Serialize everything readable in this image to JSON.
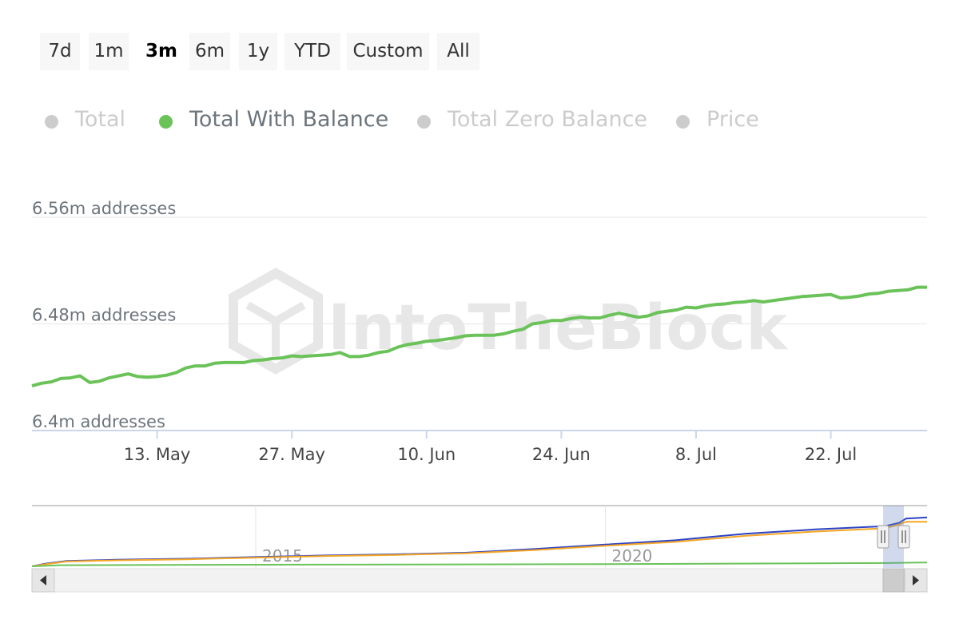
{
  "range_selector": {
    "buttons": [
      "7d",
      "1m",
      "3m",
      "6m",
      "1y",
      "YTD",
      "Custom",
      "All"
    ],
    "selected": "3m"
  },
  "legend": {
    "items": [
      "Total",
      "Total With Balance",
      "Total Zero Balance",
      "Price"
    ],
    "active": "Total With Balance",
    "inactive_color": "#cccccc",
    "active_color": "#6ac259"
  },
  "watermark": "IntoTheBlock",
  "chart_data": [
    {
      "type": "line",
      "title": "",
      "xlabel": "",
      "ylabel": "",
      "x_axis": {
        "tick_labels": [
          "13. May",
          "27. May",
          "10. Jun",
          "24. Jun",
          "8. Jul",
          "22. Jul"
        ],
        "tick_dates": [
          "2024-05-13",
          "2024-05-27",
          "2024-06-10",
          "2024-06-24",
          "2024-07-08",
          "2024-07-22"
        ],
        "range": [
          "2024-04-30",
          "2024-07-31"
        ]
      },
      "y_axis": {
        "tick_labels": [
          "6.56m addresses",
          "6.48m addresses",
          "6.4m addresses"
        ],
        "tick_values": [
          6.56,
          6.48,
          6.4
        ],
        "unit": "m addresses",
        "range": [
          6.4,
          6.56
        ]
      },
      "grid": true,
      "series": [
        {
          "name": "Total With Balance",
          "color": "#6ac259",
          "points": [
            [
              "2024-04-30",
              6.4335
            ],
            [
              "2024-05-01",
              6.4355
            ],
            [
              "2024-05-02",
              6.4365
            ],
            [
              "2024-05-03",
              6.439
            ],
            [
              "2024-05-04",
              6.4395
            ],
            [
              "2024-05-05",
              6.441
            ],
            [
              "2024-05-06",
              6.436
            ],
            [
              "2024-05-07",
              6.437
            ],
            [
              "2024-05-08",
              6.4395
            ],
            [
              "2024-05-09",
              6.441
            ],
            [
              "2024-05-10",
              6.4425
            ],
            [
              "2024-05-11",
              6.4405
            ],
            [
              "2024-05-12",
              6.44
            ],
            [
              "2024-05-13",
              6.4405
            ],
            [
              "2024-05-14",
              6.4415
            ],
            [
              "2024-05-15",
              6.4435
            ],
            [
              "2024-05-16",
              6.447
            ],
            [
              "2024-05-17",
              6.4485
            ],
            [
              "2024-05-18",
              6.4485
            ],
            [
              "2024-05-19",
              6.4505
            ],
            [
              "2024-05-20",
              6.451
            ],
            [
              "2024-05-21",
              6.451
            ],
            [
              "2024-05-22",
              6.451
            ],
            [
              "2024-05-23",
              6.4525
            ],
            [
              "2024-05-24",
              6.453
            ],
            [
              "2024-05-25",
              6.454
            ],
            [
              "2024-05-26",
              6.4545
            ],
            [
              "2024-05-27",
              6.456
            ],
            [
              "2024-05-28",
              6.4555
            ],
            [
              "2024-05-29",
              6.456
            ],
            [
              "2024-05-30",
              6.4565
            ],
            [
              "2024-05-31",
              6.457
            ],
            [
              "2024-06-01",
              6.4585
            ],
            [
              "2024-06-02",
              6.4555
            ],
            [
              "2024-06-03",
              6.4555
            ],
            [
              "2024-06-04",
              6.4565
            ],
            [
              "2024-06-05",
              6.4585
            ],
            [
              "2024-06-06",
              6.4595
            ],
            [
              "2024-06-07",
              6.4625
            ],
            [
              "2024-06-08",
              6.4645
            ],
            [
              "2024-06-09",
              6.4655
            ],
            [
              "2024-06-10",
              6.467
            ],
            [
              "2024-06-11",
              6.4675
            ],
            [
              "2024-06-12",
              6.4685
            ],
            [
              "2024-06-13",
              6.4695
            ],
            [
              "2024-06-14",
              6.471
            ],
            [
              "2024-06-15",
              6.4715
            ],
            [
              "2024-06-16",
              6.4715
            ],
            [
              "2024-06-17",
              6.4715
            ],
            [
              "2024-06-18",
              6.4725
            ],
            [
              "2024-06-19",
              6.4745
            ],
            [
              "2024-06-20",
              6.476
            ],
            [
              "2024-06-21",
              6.48
            ],
            [
              "2024-06-22",
              6.481
            ],
            [
              "2024-06-23",
              6.4825
            ],
            [
              "2024-06-24",
              6.4825
            ],
            [
              "2024-06-25",
              6.484
            ],
            [
              "2024-06-26",
              6.485
            ],
            [
              "2024-06-27",
              6.4845
            ],
            [
              "2024-06-28",
              6.4845
            ],
            [
              "2024-06-29",
              6.4865
            ],
            [
              "2024-06-30",
              6.488
            ],
            [
              "2024-07-01",
              6.4865
            ],
            [
              "2024-07-02",
              6.485
            ],
            [
              "2024-07-03",
              6.486
            ],
            [
              "2024-07-04",
              6.4885
            ],
            [
              "2024-07-05",
              6.4895
            ],
            [
              "2024-07-06",
              6.4905
            ],
            [
              "2024-07-07",
              6.4925
            ],
            [
              "2024-07-08",
              6.492
            ],
            [
              "2024-07-09",
              6.4935
            ],
            [
              "2024-07-10",
              6.4945
            ],
            [
              "2024-07-11",
              6.495
            ],
            [
              "2024-07-12",
              6.496
            ],
            [
              "2024-07-13",
              6.4965
            ],
            [
              "2024-07-14",
              6.4975
            ],
            [
              "2024-07-15",
              6.4965
            ],
            [
              "2024-07-16",
              6.4975
            ],
            [
              "2024-07-17",
              6.4985
            ],
            [
              "2024-07-18",
              6.4995
            ],
            [
              "2024-07-19",
              6.5005
            ],
            [
              "2024-07-20",
              6.501
            ],
            [
              "2024-07-21",
              6.5015
            ],
            [
              "2024-07-22",
              6.502
            ],
            [
              "2024-07-23",
              6.4995
            ],
            [
              "2024-07-24",
              6.5
            ],
            [
              "2024-07-25",
              6.501
            ],
            [
              "2024-07-26",
              6.5025
            ],
            [
              "2024-07-27",
              6.503
            ],
            [
              "2024-07-28",
              6.5045
            ],
            [
              "2024-07-29",
              6.505
            ],
            [
              "2024-07-30",
              6.5055
            ],
            [
              "2024-07-31",
              6.5075
            ],
            [
              "2024-08-01",
              6.5075
            ]
          ]
        }
      ]
    },
    {
      "type": "line",
      "title": "",
      "xlabel": "",
      "ylabel": "",
      "role": "navigator",
      "x_axis": {
        "tick_labels": [
          "2015",
          "2020"
        ],
        "tick_values": [
          2015,
          2020
        ],
        "range": [
          2011.8,
          2024.6
        ]
      },
      "y_range": [
        0,
        1
      ],
      "selected_window": [
        "2024-04-30",
        "2024-08-01"
      ],
      "series": [
        {
          "color": "#2b42c5",
          "points": [
            [
              2011.8,
              0.0
            ],
            [
              2012.0,
              0.05
            ],
            [
              2012.3,
              0.1
            ],
            [
              2013,
              0.12
            ],
            [
              2014,
              0.14
            ],
            [
              2015,
              0.17
            ],
            [
              2016,
              0.2
            ],
            [
              2017,
              0.22
            ],
            [
              2018,
              0.25
            ],
            [
              2019,
              0.32
            ],
            [
              2020,
              0.4
            ],
            [
              2021,
              0.48
            ],
            [
              2022,
              0.6
            ],
            [
              2023,
              0.68
            ],
            [
              2024.0,
              0.74
            ],
            [
              2024.2,
              0.8
            ],
            [
              2024.3,
              0.88
            ],
            [
              2024.6,
              0.9
            ]
          ]
        },
        {
          "color": "#f5a623",
          "points": [
            [
              2011.8,
              0.0
            ],
            [
              2012.0,
              0.04
            ],
            [
              2012.3,
              0.09
            ],
            [
              2013,
              0.11
            ],
            [
              2014,
              0.13
            ],
            [
              2015,
              0.16
            ],
            [
              2016,
              0.19
            ],
            [
              2017,
              0.21
            ],
            [
              2018,
              0.24
            ],
            [
              2019,
              0.3
            ],
            [
              2020,
              0.38
            ],
            [
              2021,
              0.45
            ],
            [
              2022,
              0.56
            ],
            [
              2023,
              0.64
            ],
            [
              2024.0,
              0.7
            ],
            [
              2024.2,
              0.77
            ],
            [
              2024.3,
              0.82
            ],
            [
              2024.6,
              0.82
            ]
          ]
        },
        {
          "color": "#6ac259",
          "points": [
            [
              2011.8,
              0.0
            ],
            [
              2012.2,
              0.02
            ],
            [
              2015,
              0.03
            ],
            [
              2020,
              0.04
            ],
            [
              2024.0,
              0.06
            ],
            [
              2024.6,
              0.07
            ]
          ]
        }
      ]
    }
  ]
}
